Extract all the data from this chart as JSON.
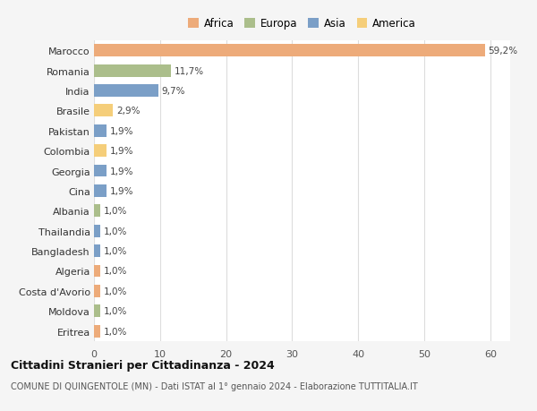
{
  "countries": [
    "Marocco",
    "Romania",
    "India",
    "Brasile",
    "Pakistan",
    "Colombia",
    "Georgia",
    "Cina",
    "Albania",
    "Thailandia",
    "Bangladesh",
    "Algeria",
    "Costa d'Avorio",
    "Moldova",
    "Eritrea"
  ],
  "values": [
    59.2,
    11.7,
    9.7,
    2.9,
    1.9,
    1.9,
    1.9,
    1.9,
    1.0,
    1.0,
    1.0,
    1.0,
    1.0,
    1.0,
    1.0
  ],
  "labels": [
    "59,2%",
    "11,7%",
    "9,7%",
    "2,9%",
    "1,9%",
    "1,9%",
    "1,9%",
    "1,9%",
    "1,0%",
    "1,0%",
    "1,0%",
    "1,0%",
    "1,0%",
    "1,0%",
    "1,0%"
  ],
  "colors": [
    "#EDAB7A",
    "#ABBE8B",
    "#7B9FC7",
    "#F5CE7A",
    "#7B9FC7",
    "#F5CE7A",
    "#7B9FC7",
    "#7B9FC7",
    "#ABBE8B",
    "#7B9FC7",
    "#7B9FC7",
    "#EDAB7A",
    "#EDAB7A",
    "#ABBE8B",
    "#EDAB7A"
  ],
  "legend_labels": [
    "Africa",
    "Europa",
    "Asia",
    "America"
  ],
  "legend_colors": [
    "#EDAB7A",
    "#ABBE8B",
    "#7B9FC7",
    "#F5CE7A"
  ],
  "title": "Cittadini Stranieri per Cittadinanza - 2024",
  "subtitle": "COMUNE DI QUINGENTOLE (MN) - Dati ISTAT al 1° gennaio 2024 - Elaborazione TUTTITALIA.IT",
  "xlim": [
    0,
    63
  ],
  "xticks": [
    0,
    10,
    20,
    30,
    40,
    50,
    60
  ],
  "bg_color": "#f5f5f5",
  "plot_bg_color": "#ffffff"
}
